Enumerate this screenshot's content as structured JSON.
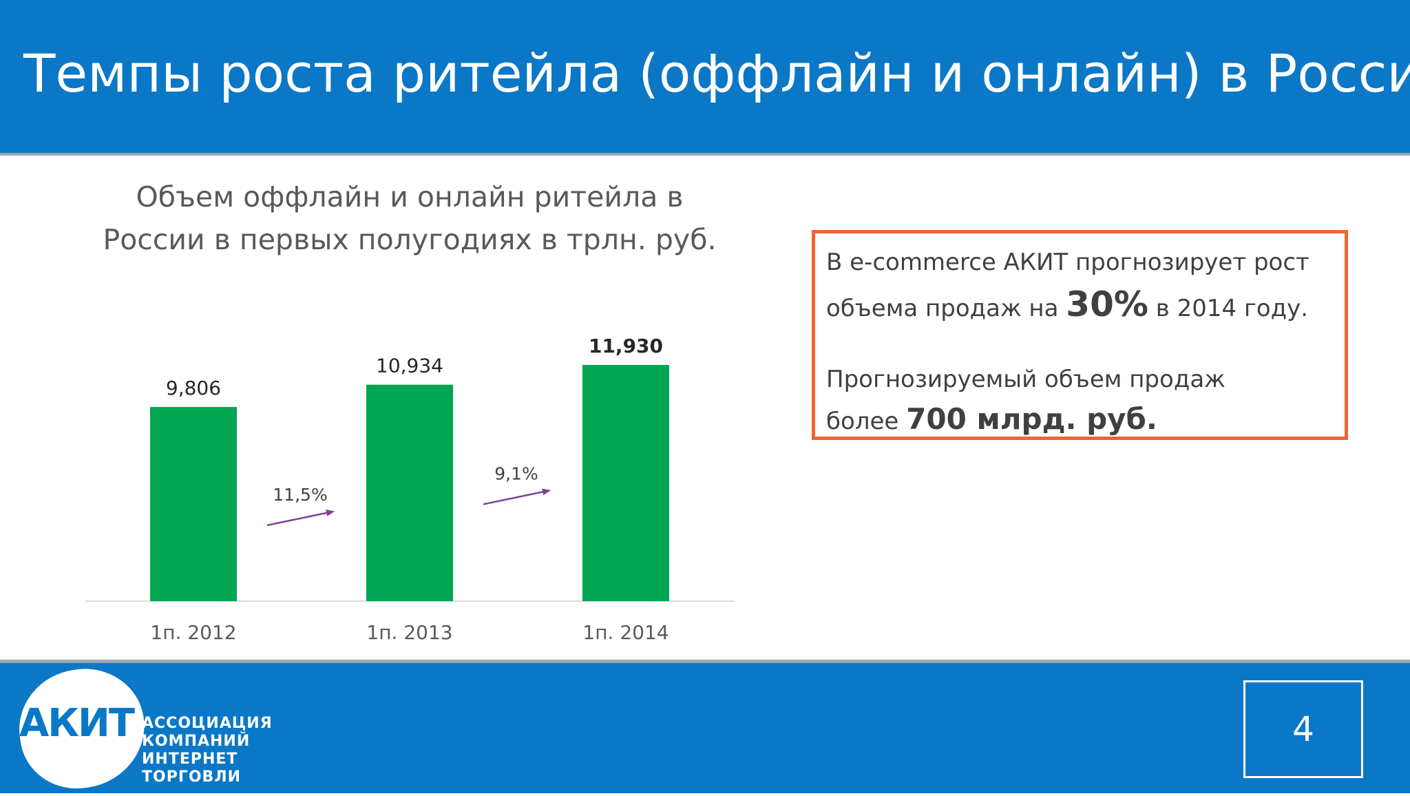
{
  "slide": {
    "title": "Темпы роста ритейла (оффлайн и онлайн) в России",
    "page_number": "4"
  },
  "chart_data": {
    "type": "bar",
    "title": "Объем оффлайн и онлайн ритейла в России в первых полугодиях в трлн. руб.",
    "categories": [
      "1п. 2012",
      "1п. 2013",
      "1п. 2014"
    ],
    "values": [
      9.806,
      10.934,
      11.93
    ],
    "value_labels": [
      "9,806",
      "10,934",
      "11,930"
    ],
    "growth_labels": [
      "11,5%",
      "9,1%"
    ],
    "ylim": [
      0,
      11.93
    ],
    "grid": false,
    "colors": {
      "bar": "#00a651",
      "arrow": "#7b3f98",
      "axis": "#d9d9d9"
    }
  },
  "callout": {
    "line1": "В e-commerce АКИТ прогнозирует рост",
    "line2_pre": "объема продаж на ",
    "line2_big": "30%",
    "line2_post": " в 2014 году.",
    "line3": "Прогнозируемый объем продаж",
    "line4_pre": "более ",
    "line4_bold": "700 млрд. руб."
  },
  "footer": {
    "logo_mark": "АКИТ",
    "logo_lines": [
      "АССОЦИАЦИЯ",
      "КОМПАНИЙ",
      "ИНТЕРНЕТ",
      "ТОРГОВЛИ"
    ]
  }
}
